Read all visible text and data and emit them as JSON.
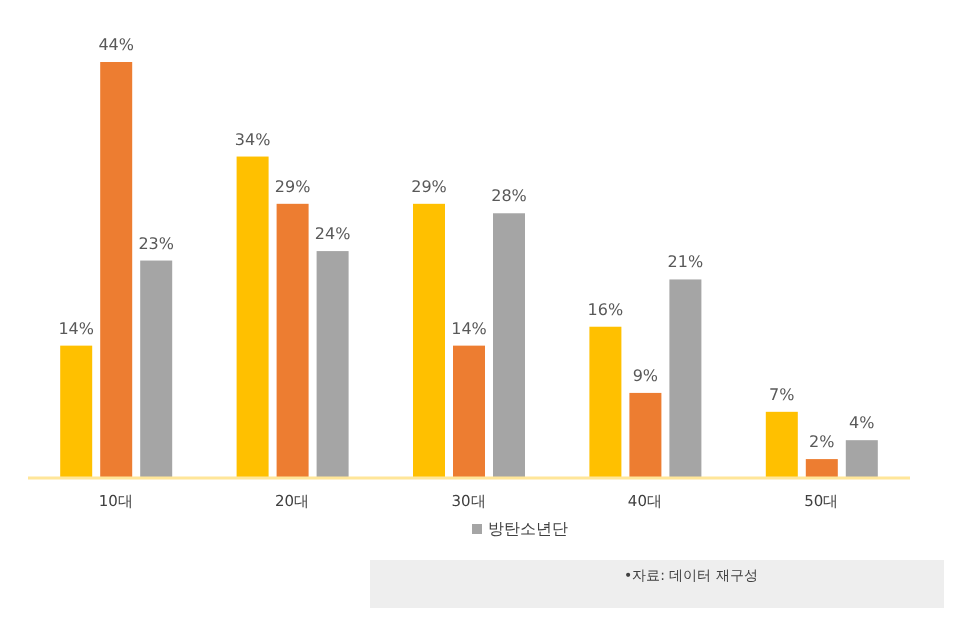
{
  "chart_data": {
    "type": "bar",
    "categories": [
      "10대",
      "20대",
      "30대",
      "40대",
      "50대"
    ],
    "series": [
      {
        "color": "#ffc000",
        "values": [
          14,
          34,
          29,
          16,
          7
        ],
        "value_labels": [
          "14%",
          "34%",
          "29%",
          "16%",
          "7%"
        ]
      },
      {
        "color": "#ed7d31",
        "values": [
          44,
          29,
          14,
          9,
          2
        ],
        "value_labels": [
          "44%",
          "29%",
          "14%",
          "9%",
          "2%"
        ]
      },
      {
        "name": "방탄소년단",
        "color": "#a5a5a5",
        "values": [
          23,
          24,
          28,
          21,
          4
        ],
        "value_labels": [
          "23%",
          "24%",
          "28%",
          "21%",
          "4%"
        ]
      }
    ],
    "legend": "bottom",
    "annotations": [
      "•자료: 데이터 재구성"
    ]
  }
}
